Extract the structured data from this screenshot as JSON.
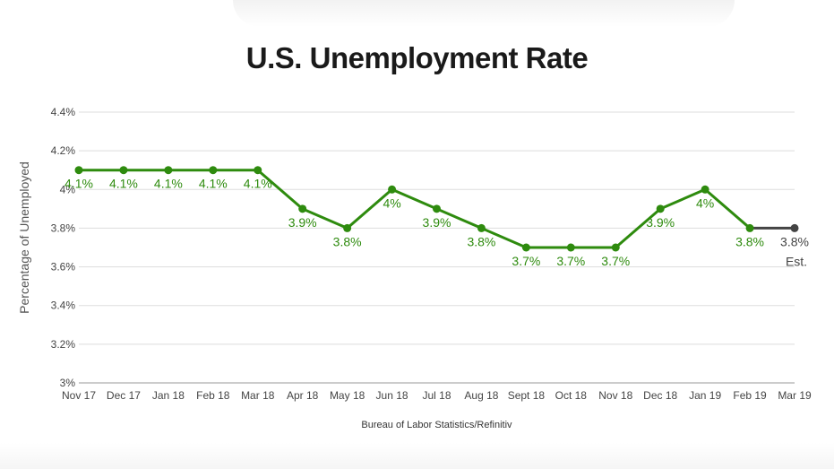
{
  "chart_data": {
    "type": "line",
    "title": "U.S. Unemployment Rate",
    "ylabel": "Percentage of Unemployed",
    "xlabel": "",
    "source": "Bureau of Labor Statistics/Refinitiv",
    "categories": [
      "Nov 17",
      "Dec 17",
      "Jan 18",
      "Feb 18",
      "Mar 18",
      "Apr 18",
      "May 18",
      "Jun 18",
      "Jul 18",
      "Aug 18",
      "Sept 18",
      "Oct 18",
      "Nov 18",
      "Dec 18",
      "Jan 19",
      "Feb 19",
      "Mar 19"
    ],
    "values": [
      4.1,
      4.1,
      4.1,
      4.1,
      4.1,
      3.9,
      3.8,
      4.0,
      3.9,
      3.8,
      3.7,
      3.7,
      3.7,
      3.9,
      4.0,
      3.8,
      3.8
    ],
    "data_labels": [
      "4.1%",
      "4.1%",
      "4.1%",
      "4.1%",
      "4.1%",
      "3.9%",
      "3.8%",
      "4%",
      "3.9%",
      "3.8%",
      "3.7%",
      "3.7%",
      "3.7%",
      "3.9%",
      "4%",
      "3.8%",
      "3.8%"
    ],
    "estimate_annotation": "Est.",
    "estimate_index": 16,
    "ylim": [
      3.0,
      4.4
    ],
    "yticks": [
      3.0,
      3.2,
      3.4,
      3.6,
      3.8,
      4.0,
      4.2,
      4.4
    ],
    "ytick_labels": [
      "3%",
      "3.2%",
      "3.4%",
      "3.6%",
      "3.8%",
      "4%",
      "4.2%",
      "4.4%"
    ],
    "grid": true,
    "colors": {
      "actual": "#2e8b0e",
      "estimate": "#444444",
      "grid": "#dddddd"
    }
  }
}
